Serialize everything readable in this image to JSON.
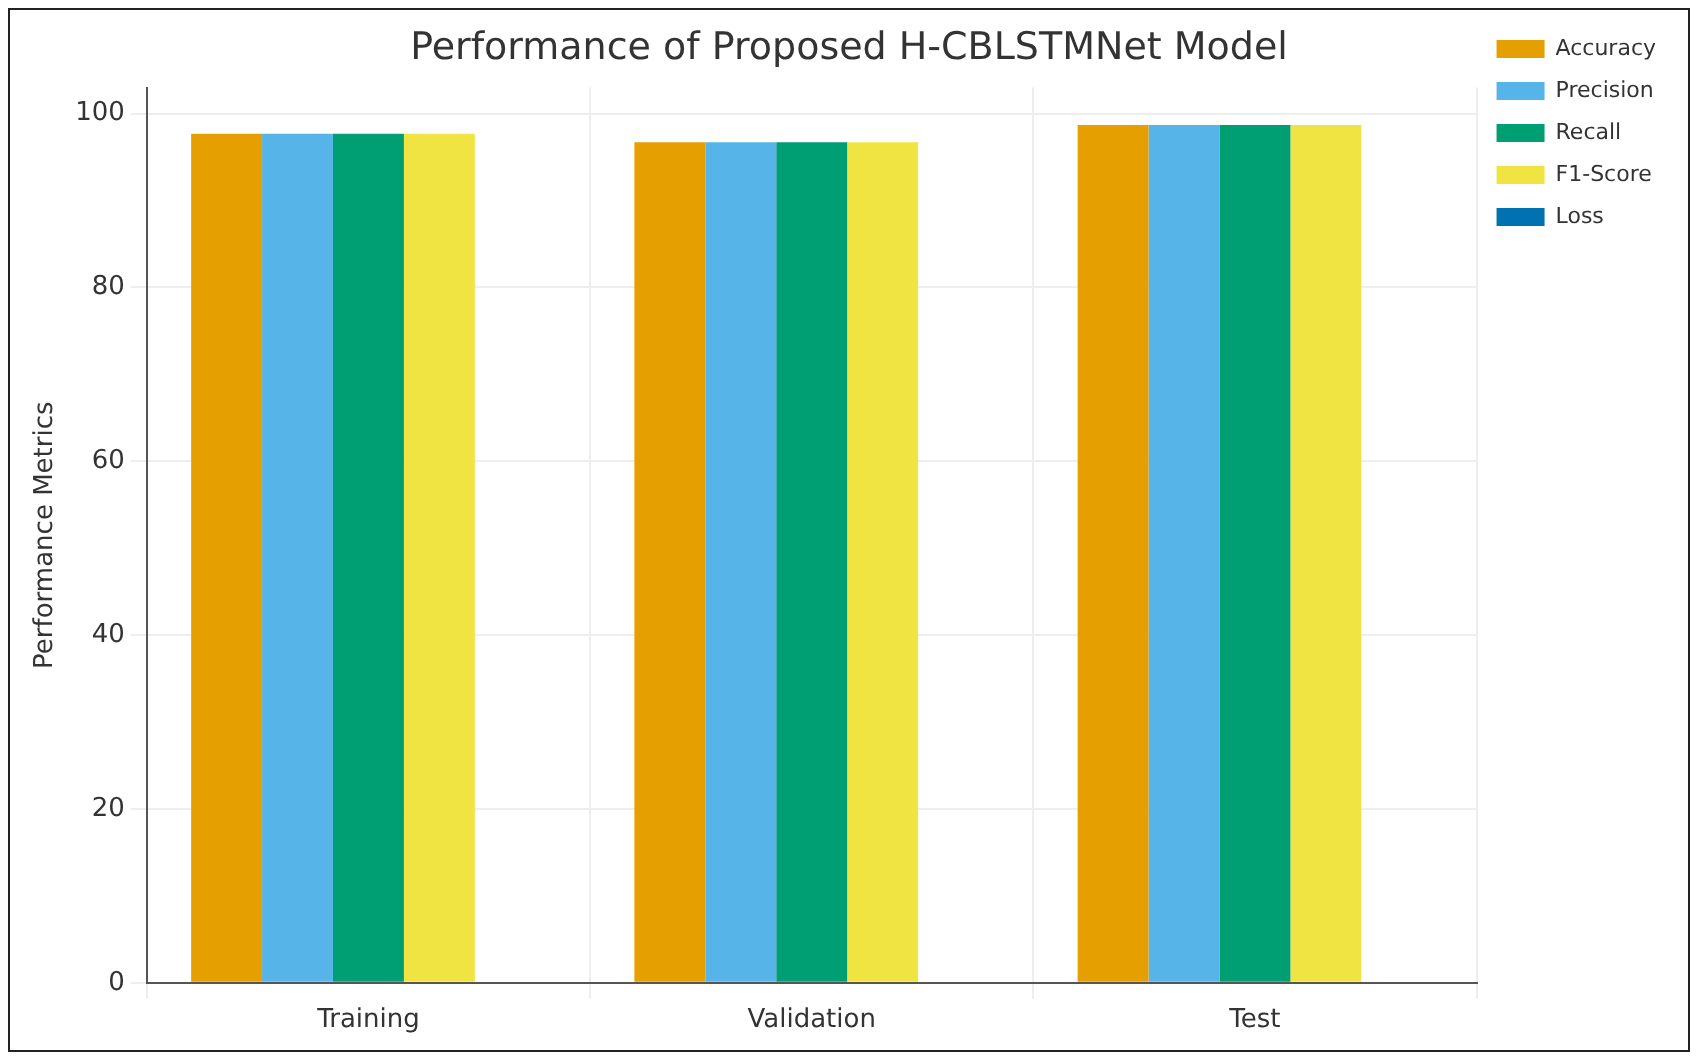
{
  "chart_data": {
    "type": "bar",
    "title": "Performance of Proposed H-CBLSTMNet Model",
    "ylabel": "Performance Metrics",
    "categories": [
      "Training",
      "Validation",
      "Test"
    ],
    "series": [
      {
        "name": "Accuracy",
        "color": "#e69f00",
        "values": [
          97.7,
          96.7,
          98.7
        ]
      },
      {
        "name": "Precision",
        "color": "#56b4e9",
        "values": [
          97.7,
          96.7,
          98.7
        ]
      },
      {
        "name": "Recall",
        "color": "#009e73",
        "values": [
          97.7,
          96.7,
          98.7
        ]
      },
      {
        "name": "F1-Score",
        "color": "#f0e442",
        "values": [
          97.7,
          96.7,
          98.7
        ]
      },
      {
        "name": "Loss",
        "color": "#0072b2",
        "values": [
          0,
          0,
          0
        ]
      }
    ],
    "ylim": [
      0,
      103
    ],
    "yticks": [
      0,
      20,
      40,
      60,
      80,
      100
    ],
    "grid": true,
    "legend": "top right"
  }
}
